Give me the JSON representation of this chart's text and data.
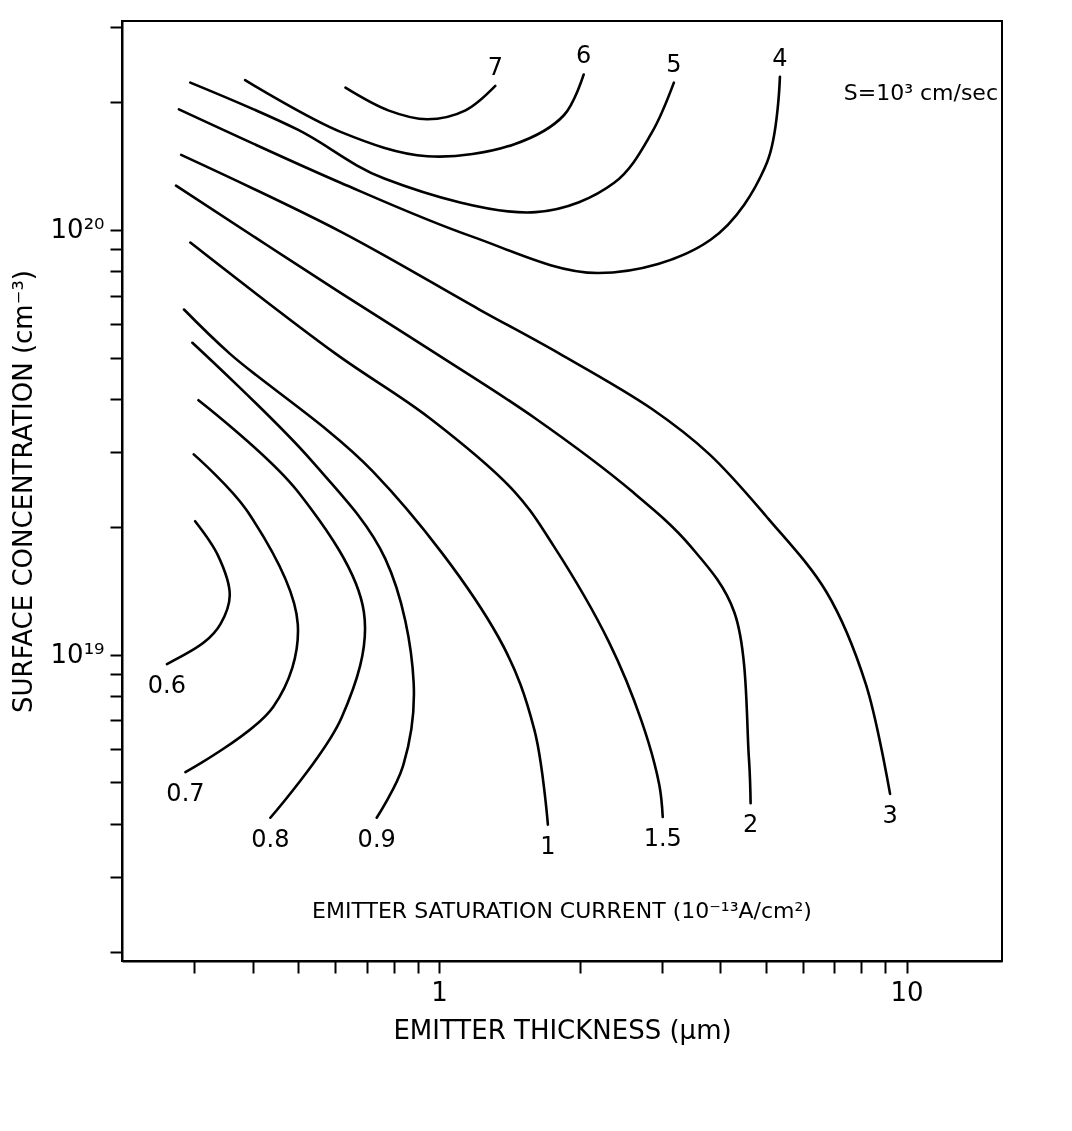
{
  "chart_data": {
    "type": "line",
    "xlabel": "EMITTER THICKNESS (μm)",
    "ylabel": "SURFACE CONCENTRATION (cm⁻³)",
    "log": "xy",
    "grid": false,
    "xlim": [
      0.21,
      16
    ],
    "ylim": [
      1.9e+18,
      3.1e+20
    ],
    "xticks": [
      {
        "value": 0.3,
        "label": null
      },
      {
        "value": 0.4,
        "label": null
      },
      {
        "value": 0.5,
        "label": null
      },
      {
        "value": 0.6,
        "label": null
      },
      {
        "value": 0.7,
        "label": null
      },
      {
        "value": 0.8,
        "label": null
      },
      {
        "value": 0.9,
        "label": null
      },
      1,
      {
        "value": 2,
        "label": null
      },
      {
        "value": 3,
        "label": null
      },
      {
        "value": 4,
        "label": null
      },
      {
        "value": 5,
        "label": null
      },
      {
        "value": 6,
        "label": null
      },
      {
        "value": 7,
        "label": null
      },
      {
        "value": 8,
        "label": null
      },
      {
        "value": 9,
        "label": null
      },
      10
    ],
    "yticks": [
      {
        "value": 2e+18,
        "label": null
      },
      {
        "value": 3e+18,
        "label": null
      },
      {
        "value": 4e+18,
        "label": null
      },
      {
        "value": 5e+18,
        "label": null
      },
      {
        "value": 6e+18,
        "label": null
      },
      {
        "value": 7e+18,
        "label": null
      },
      {
        "value": 8e+18,
        "label": null
      },
      {
        "value": 9e+18,
        "label": null
      },
      {
        "value": 1e+19,
        "label": "10¹⁹"
      },
      {
        "value": 2e+19,
        "label": null
      },
      {
        "value": 3e+19,
        "label": null
      },
      {
        "value": 4e+19,
        "label": null
      },
      {
        "value": 5e+19,
        "label": null
      },
      {
        "value": 6e+19,
        "label": null
      },
      {
        "value": 7e+19,
        "label": null
      },
      {
        "value": 8e+19,
        "label": null
      },
      {
        "value": 9e+19,
        "label": null
      },
      {
        "value": 1e+20,
        "label": "10²⁰"
      },
      {
        "value": 2e+20,
        "label": null
      },
      {
        "value": 3e+20,
        "label": null
      }
    ],
    "annotations": [
      "S=10³ cm/sec",
      "EMITTER SATURATION CURRENT (10⁻¹³A/cm²)"
    ],
    "series": [
      {
        "name": "7",
        "color": "#000000",
        "x": [
          0.631,
          0.779,
          0.944,
          1.14,
          1.32
        ],
        "values": [
          2.16e+20,
          1.91e+20,
          1.82e+20,
          1.91e+20,
          2.18e+20
        ]
      },
      {
        "name": "6",
        "color": "#000000",
        "x": [
          0.385,
          0.616,
          0.944,
          1.45,
          1.85,
          2.04
        ],
        "values": [
          2.25e+20,
          1.7e+20,
          1.49e+20,
          1.59e+20,
          1.86e+20,
          2.32e+20
        ]
      },
      {
        "name": "5",
        "color": "#000000",
        "x": [
          0.294,
          0.499,
          0.764,
          1.61,
          2.37,
          2.85,
          3.18
        ],
        "values": [
          2.22e+20,
          1.72e+20,
          1.32e+20,
          1.1e+20,
          1.29e+20,
          1.69e+20,
          2.22e+20
        ]
      },
      {
        "name": "4",
        "color": "#000000",
        "x": [
          0.278,
          0.616,
          1.17,
          2.19,
          3.81,
          5.03,
          5.36
        ],
        "values": [
          1.92e+20,
          1.29e+20,
          9.66e+19,
          7.91e+19,
          9.47e+19,
          1.44e+20,
          2.29e+20
        ]
      },
      {
        "name": "3",
        "color": "#000000",
        "x": [
          0.281,
          0.616,
          1.22,
          1.81,
          2.85,
          3.79,
          5.06,
          6.75,
          8.18,
          9.22
        ],
        "values": [
          1.5e+20,
          9.9e+19,
          6.49e+19,
          5.11e+19,
          3.79e+19,
          2.96e+19,
          2.09e+19,
          1.4e+19,
          8.53e+18,
          4.7e+18
        ]
      },
      {
        "name": "2",
        "color": "#000000",
        "x": [
          0.274,
          0.616,
          0.986,
          1.6,
          2.59,
          3.45,
          4.28,
          4.6,
          4.64
        ],
        "values": [
          1.27e+20,
          7.1e+19,
          5.11e+19,
          3.61e+19,
          2.42e+19,
          1.8e+19,
          1.26e+19,
          5.73e+18,
          4.47e+18
        ]
      },
      {
        "name": "1.5",
        "color": "#000000",
        "x": [
          0.294,
          0.601,
          0.953,
          1.45,
          1.76,
          2.31,
          2.71,
          2.96,
          3.01
        ],
        "values": [
          9.33e+19,
          5.11e+19,
          3.61e+19,
          2.42e+19,
          1.8e+19,
          1.07e+19,
          6.99e+18,
          4.93e+18,
          4.15e+18
        ]
      },
      {
        "name": "1",
        "color": "#000000",
        "x": [
          0.285,
          0.357,
          0.722,
          1.34,
          1.6,
          1.71
        ],
        "values": [
          6.49e+19,
          5.11e+19,
          2.7e+19,
          1.1e+19,
          6.65e+18,
          3.98e+18
        ]
      },
      {
        "name": "0.9",
        "color": "#000000",
        "x": [
          0.297,
          0.531,
          0.768,
          0.883,
          0.837,
          0.736
        ],
        "values": [
          5.42e+19,
          2.88e+19,
          1.68e+19,
          8.57e+18,
          5.45e+18,
          4.13e+18
        ]
      },
      {
        "name": "0.8",
        "color": "#000000",
        "x": [
          0.306,
          0.499,
          0.691,
          0.619,
          0.436
        ],
        "values": [
          3.97e+19,
          2.42e+19,
          1.26e+19,
          7.1e+18,
          4.13e+18
        ]
      },
      {
        "name": "0.7",
        "color": "#000000",
        "x": [
          0.299,
          0.391,
          0.499,
          0.442,
          0.287
        ],
        "values": [
          2.96e+19,
          2.16e+19,
          1.18e+19,
          7.53e+18,
          5.29e+18
        ]
      },
      {
        "name": "0.6",
        "color": "#000000",
        "x": [
          0.301,
          0.337,
          0.357,
          0.341,
          0.315,
          0.262
        ],
        "values": [
          2.06e+19,
          1.71e+19,
          1.38e+19,
          1.18e+19,
          1.07e+19,
          9.5e+18
        ]
      }
    ]
  }
}
